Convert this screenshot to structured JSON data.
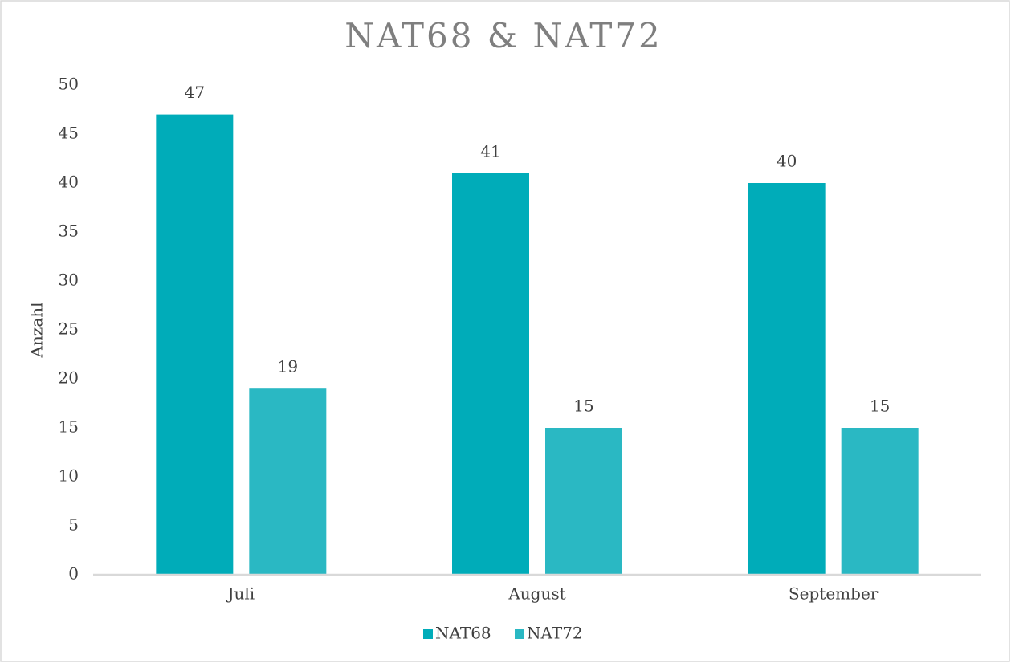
{
  "chart_data": {
    "type": "bar",
    "title": "NAT68 & NAT72",
    "y_label": "Anzahl",
    "categories": [
      "Juli",
      "August",
      "September"
    ],
    "series": [
      {
        "name": "NAT68",
        "color": "#00acb9",
        "values": [
          47,
          41,
          40
        ]
      },
      {
        "name": "NAT72",
        "color": "#2ab8c3",
        "values": [
          19,
          15,
          15
        ]
      }
    ],
    "ylim": [
      0,
      50
    ],
    "yticks": [
      0,
      5,
      10,
      15,
      20,
      25,
      30,
      35,
      40,
      45,
      50
    ],
    "grid": false,
    "legend": "bottom",
    "data_labels": true
  }
}
